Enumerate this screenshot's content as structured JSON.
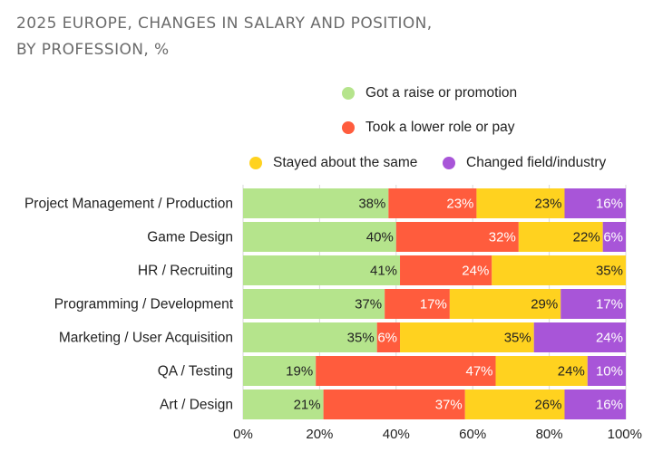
{
  "chart_data": {
    "type": "bar",
    "orientation": "horizontal",
    "stacked": true,
    "title_lines": [
      "2025 EUROPE, CHANGES IN SALARY AND POSITION,",
      "BY PROFESSION, %"
    ],
    "categories": [
      "Project Management / Production",
      "Game Design",
      "HR / Recruiting",
      "Programming / Development",
      "Marketing / User Acquisition",
      "QA / Testing",
      "Art / Design"
    ],
    "series": [
      {
        "name": "Got a raise or promotion",
        "color": "#b5e48c",
        "label_color": "#222222",
        "values": [
          38,
          40,
          41,
          37,
          35,
          19,
          21
        ]
      },
      {
        "name": "Took a lower role or pay",
        "color": "#ff5c3d",
        "label_color": "#ffffff",
        "values": [
          23,
          32,
          24,
          17,
          6,
          47,
          37
        ]
      },
      {
        "name": "Stayed about the same",
        "color": "#ffd21f",
        "label_color": "#222222",
        "values": [
          23,
          22,
          35,
          29,
          35,
          24,
          26
        ]
      },
      {
        "name": "Changed field/industry",
        "color": "#a855d8",
        "label_color": "#ffffff",
        "values": [
          16,
          6,
          0,
          17,
          24,
          10,
          16
        ]
      }
    ],
    "xlim": [
      0,
      100
    ],
    "xticks": [
      "0%",
      "20%",
      "40%",
      "60%",
      "80%",
      "100%"
    ],
    "xlabel": "",
    "ylabel": "",
    "grid": true,
    "legend": "top-right"
  }
}
